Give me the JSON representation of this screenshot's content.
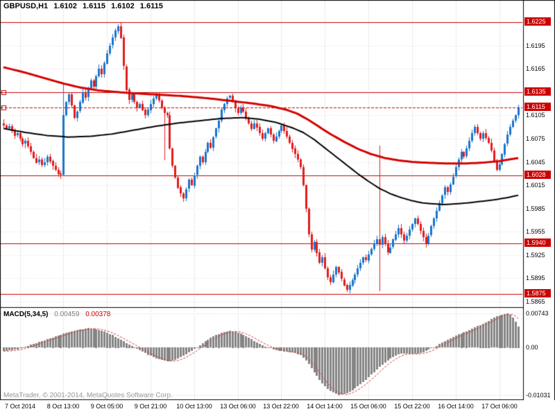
{
  "header": {
    "symbol_timeframe": "GBPUSD,H1",
    "open": "1.6102",
    "high": "1.6115",
    "low": "1.6102",
    "close": "1.6115"
  },
  "watermark": "MetaTrader, © 2001-2014, MetaQuotes Software Corp.",
  "chart_data": {
    "type": "candlestick",
    "symbol": "GBPUSD",
    "timeframe": "H1",
    "colors": {
      "up": "#1874cd",
      "down": "#e31b1b",
      "level": "#cc0000",
      "tag_bg": "#cc0000",
      "grid_v": "#c6c6c6",
      "grid_h": "#e2e2e2",
      "macd_bar": "#848484",
      "macd_signal": "#d83434"
    },
    "first_open": 1.6095,
    "closes": [
      1.6092,
      1.6088,
      1.6091,
      1.6085,
      1.6079,
      1.6082,
      1.6075,
      1.6068,
      1.6072,
      1.6065,
      1.6058,
      1.605,
      1.6044,
      1.6048,
      1.6041,
      1.6045,
      1.6052,
      1.6046,
      1.604,
      1.6035,
      1.603,
      1.6028,
      1.6105,
      1.6122,
      1.6132,
      1.6118,
      1.6102,
      1.611,
      1.6122,
      1.6135,
      1.6128,
      1.614,
      1.615,
      1.6142,
      1.6155,
      1.6165,
      1.6158,
      1.6172,
      1.6185,
      1.6195,
      1.6205,
      1.6214,
      1.622,
      1.6205,
      1.6168,
      1.6138,
      1.6125,
      1.6132,
      1.6122,
      1.6115,
      1.612,
      1.6112,
      1.6105,
      1.6112,
      1.612,
      1.6127,
      1.6132,
      1.6124,
      1.6115,
      1.6108,
      1.6105,
      1.6062,
      1.604,
      1.6025,
      1.6012,
      1.6004,
      1.5998,
      1.601,
      1.6022,
      1.6015,
      1.6028,
      1.604,
      1.6052,
      1.6045,
      1.6058,
      1.607,
      1.6064,
      1.6077,
      1.6088,
      1.6098,
      1.6112,
      1.612,
      1.6127,
      1.613,
      1.6122,
      1.6114,
      1.6108,
      1.6115,
      1.611,
      1.6102,
      1.6095,
      1.6088,
      1.6095,
      1.609,
      1.6082,
      1.6075,
      1.6082,
      1.6088,
      1.608,
      1.6072,
      1.6078,
      1.6085,
      1.6092,
      1.6085,
      1.6078,
      1.607,
      1.6062,
      1.6055,
      1.6048,
      1.6038,
      1.6015,
      1.5985,
      1.5952,
      1.5932,
      1.5942,
      1.5928,
      1.5915,
      1.5922,
      1.5908,
      1.5896,
      1.589,
      1.59,
      1.591,
      1.5903,
      1.5894,
      1.5886,
      1.588,
      1.5886,
      1.5893,
      1.59,
      1.5908,
      1.5915,
      1.5922,
      1.5918,
      1.5926,
      1.5933,
      1.594,
      1.5945,
      1.5938,
      1.5948,
      1.594,
      1.5928,
      1.5935,
      1.5945,
      1.5952,
      1.596,
      1.5952,
      1.5944,
      1.595,
      1.5958,
      1.5965,
      1.5972,
      1.5965,
      1.5956,
      1.5948,
      1.594,
      1.595,
      1.5962,
      1.5972,
      1.5982,
      1.5992,
      1.6002,
      1.6012,
      1.6006,
      1.6016,
      1.6026,
      1.6038,
      1.6048,
      1.6058,
      1.6052,
      1.6062,
      1.6072,
      1.6082,
      1.609,
      1.6082,
      1.6075,
      1.6082,
      1.6076,
      1.607,
      1.606,
      1.6045,
      1.6035,
      1.6042,
      1.6055,
      1.6068,
      1.608,
      1.609,
      1.6098,
      1.6105,
      1.6115
    ],
    "spikes": [
      {
        "index": 22,
        "high": 1.6147
      },
      {
        "index": 59,
        "low": 1.6047
      },
      {
        "index": 138,
        "high": 1.6066,
        "low": 1.5878
      }
    ],
    "horizontal_levels": [
      1.6225,
      1.6135,
      1.6028,
      1.594,
      1.5875
    ],
    "current_price": 1.6115,
    "left_markers": [
      1.6135,
      1.6115
    ],
    "y_axis": {
      "grid": [
        1.6225,
        1.6195,
        1.6165,
        1.6135,
        1.6105,
        1.6075,
        1.6045,
        1.6015,
        1.5985,
        1.5955,
        1.5925,
        1.5895,
        1.5865
      ],
      "plain_labels": [
        "1.6195",
        "1.6165",
        "1.6105",
        "1.6075",
        "1.6045",
        "1.6015",
        "1.5985",
        "1.5955",
        "1.5925",
        "1.5895",
        "1.5865"
      ],
      "tags": [
        "1.6225",
        "1.6135",
        "1.6115",
        "1.6028",
        "1.5940",
        "1.5875"
      ]
    },
    "x_axis": {
      "tick_indices": [
        6,
        22,
        38,
        54,
        70,
        86,
        102,
        118,
        134,
        150,
        166,
        182
      ],
      "labels": [
        "7 Oct 2014",
        "8 Oct 13:00",
        "9 Oct 05:00",
        "9 Oct 21:00",
        "10 Oct 13:00",
        "13 Oct 06:00",
        "13 Oct 22:00",
        "14 Oct 14:00",
        "15 Oct 06:00",
        "15 Oct 22:00",
        "16 Oct 14:00",
        "17 Oct 06:00"
      ]
    },
    "moving_averages": [
      {
        "name": "ma-black",
        "color": "#000000",
        "width": 2,
        "points": [
          [
            0,
            1.6088
          ],
          [
            8,
            1.6083
          ],
          [
            16,
            1.6079
          ],
          [
            24,
            1.6077
          ],
          [
            32,
            1.6078
          ],
          [
            40,
            1.6081
          ],
          [
            48,
            1.6086
          ],
          [
            56,
            1.6091
          ],
          [
            64,
            1.6095
          ],
          [
            72,
            1.6098
          ],
          [
            80,
            1.6101
          ],
          [
            88,
            1.6102
          ],
          [
            94,
            1.61
          ],
          [
            100,
            1.6096
          ],
          [
            106,
            1.6089
          ],
          [
            110,
            1.6083
          ],
          [
            114,
            1.6074
          ],
          [
            118,
            1.6063
          ],
          [
            122,
            1.6052
          ],
          [
            126,
            1.6041
          ],
          [
            130,
            1.603
          ],
          [
            134,
            1.602
          ],
          [
            138,
            1.6011
          ],
          [
            142,
            1.6004
          ],
          [
            146,
            1.5999
          ],
          [
            150,
            1.5995
          ],
          [
            154,
            1.5992
          ],
          [
            158,
            1.5991
          ],
          [
            162,
            1.599
          ],
          [
            166,
            1.5991
          ],
          [
            170,
            1.5992
          ],
          [
            175,
            1.5994
          ],
          [
            180,
            1.5996
          ],
          [
            185,
            1.5999
          ],
          [
            189,
            1.6002
          ]
        ]
      },
      {
        "name": "ma-red",
        "color": "#d60000",
        "width": 3,
        "points": [
          [
            0,
            1.6167
          ],
          [
            8,
            1.616
          ],
          [
            15,
            1.6153
          ],
          [
            22,
            1.6146
          ],
          [
            28,
            1.6141
          ],
          [
            35,
            1.6137
          ],
          [
            45,
            1.6134
          ],
          [
            55,
            1.6132
          ],
          [
            65,
            1.613
          ],
          [
            75,
            1.6127
          ],
          [
            85,
            1.6123
          ],
          [
            92,
            1.612
          ],
          [
            98,
            1.6117
          ],
          [
            104,
            1.6112
          ],
          [
            108,
            1.6107
          ],
          [
            112,
            1.6099
          ],
          [
            116,
            1.609
          ],
          [
            120,
            1.6081
          ],
          [
            125,
            1.6071
          ],
          [
            130,
            1.6062
          ],
          [
            135,
            1.6055
          ],
          [
            140,
            1.605
          ],
          [
            145,
            1.6047
          ],
          [
            150,
            1.6045
          ],
          [
            155,
            1.6044
          ],
          [
            162,
            1.6043
          ],
          [
            170,
            1.6043
          ],
          [
            176,
            1.6044
          ],
          [
            182,
            1.6046
          ],
          [
            189,
            1.605
          ]
        ]
      }
    ],
    "macd": {
      "label": "MACD(5,34,5)",
      "value": "0.00459",
      "signal": "0.00378",
      "params": {
        "fast": 5,
        "slow": 34,
        "signal": 5
      },
      "range": {
        "max": 0.00743,
        "min": -0.01031
      },
      "axis_labels": [
        {
          "value": 0.00743,
          "text": "0.00743"
        },
        {
          "value": 0,
          "text": "0.00"
        },
        {
          "value": -0.01031,
          "text": "-0.01031"
        }
      ],
      "points": [
        [
          0,
          -0.0008
        ],
        [
          5,
          -0.0004
        ],
        [
          8,
          0.0002
        ],
        [
          12,
          0.001
        ],
        [
          16,
          0.0018
        ],
        [
          20,
          0.0026
        ],
        [
          24,
          0.0034
        ],
        [
          28,
          0.0039
        ],
        [
          31,
          0.0042
        ],
        [
          34,
          0.004
        ],
        [
          37,
          0.0035
        ],
        [
          40,
          0.0027
        ],
        [
          43,
          0.0017
        ],
        [
          46,
          0.0007
        ],
        [
          48,
          0.0001
        ],
        [
          50,
          -0.0006
        ],
        [
          53,
          -0.0016
        ],
        [
          56,
          -0.0024
        ],
        [
          59,
          -0.0029
        ],
        [
          61,
          -0.003
        ],
        [
          63,
          -0.0027
        ],
        [
          66,
          -0.0018
        ],
        [
          69,
          -0.0007
        ],
        [
          71,
          0.0001
        ],
        [
          74,
          0.0014
        ],
        [
          77,
          0.0025
        ],
        [
          80,
          0.0032
        ],
        [
          83,
          0.0036
        ],
        [
          85,
          0.0035
        ],
        [
          88,
          0.0028
        ],
        [
          91,
          0.0018
        ],
        [
          94,
          0.0008
        ],
        [
          97,
          0
        ],
        [
          100,
          -0.0006
        ],
        [
          103,
          -0.0009
        ],
        [
          106,
          -0.0011
        ],
        [
          109,
          -0.0016
        ],
        [
          111,
          -0.0028
        ],
        [
          113,
          -0.0045
        ],
        [
          115,
          -0.0062
        ],
        [
          117,
          -0.0078
        ],
        [
          119,
          -0.009
        ],
        [
          121,
          -0.0098
        ],
        [
          123,
          -0.0103
        ],
        [
          125,
          -0.0101
        ],
        [
          127,
          -0.0096
        ],
        [
          129,
          -0.0089
        ],
        [
          131,
          -0.008
        ],
        [
          133,
          -0.007
        ],
        [
          135,
          -0.0059
        ],
        [
          137,
          -0.0048
        ],
        [
          139,
          -0.0037
        ],
        [
          141,
          -0.0028
        ],
        [
          143,
          -0.0021
        ],
        [
          145,
          -0.0015
        ],
        [
          147,
          -0.0013
        ],
        [
          149,
          -0.0014
        ],
        [
          151,
          -0.0014
        ],
        [
          153,
          -0.0012
        ],
        [
          155,
          -0.0008
        ],
        [
          157,
          -0.0002
        ],
        [
          159,
          0.0004
        ],
        [
          161,
          0.0011
        ],
        [
          163,
          0.0017
        ],
        [
          165,
          0.0023
        ],
        [
          167,
          0.0029
        ],
        [
          169,
          0.0033
        ],
        [
          171,
          0.0038
        ],
        [
          173,
          0.0044
        ],
        [
          175,
          0.0049
        ],
        [
          177,
          0.0055
        ],
        [
          179,
          0.0062
        ],
        [
          181,
          0.0068
        ],
        [
          183,
          0.0072
        ],
        [
          185,
          0.0074
        ],
        [
          186,
          0.0072
        ],
        [
          187,
          0.0066
        ],
        [
          188,
          0.0057
        ],
        [
          189,
          0.0046
        ]
      ]
    }
  }
}
